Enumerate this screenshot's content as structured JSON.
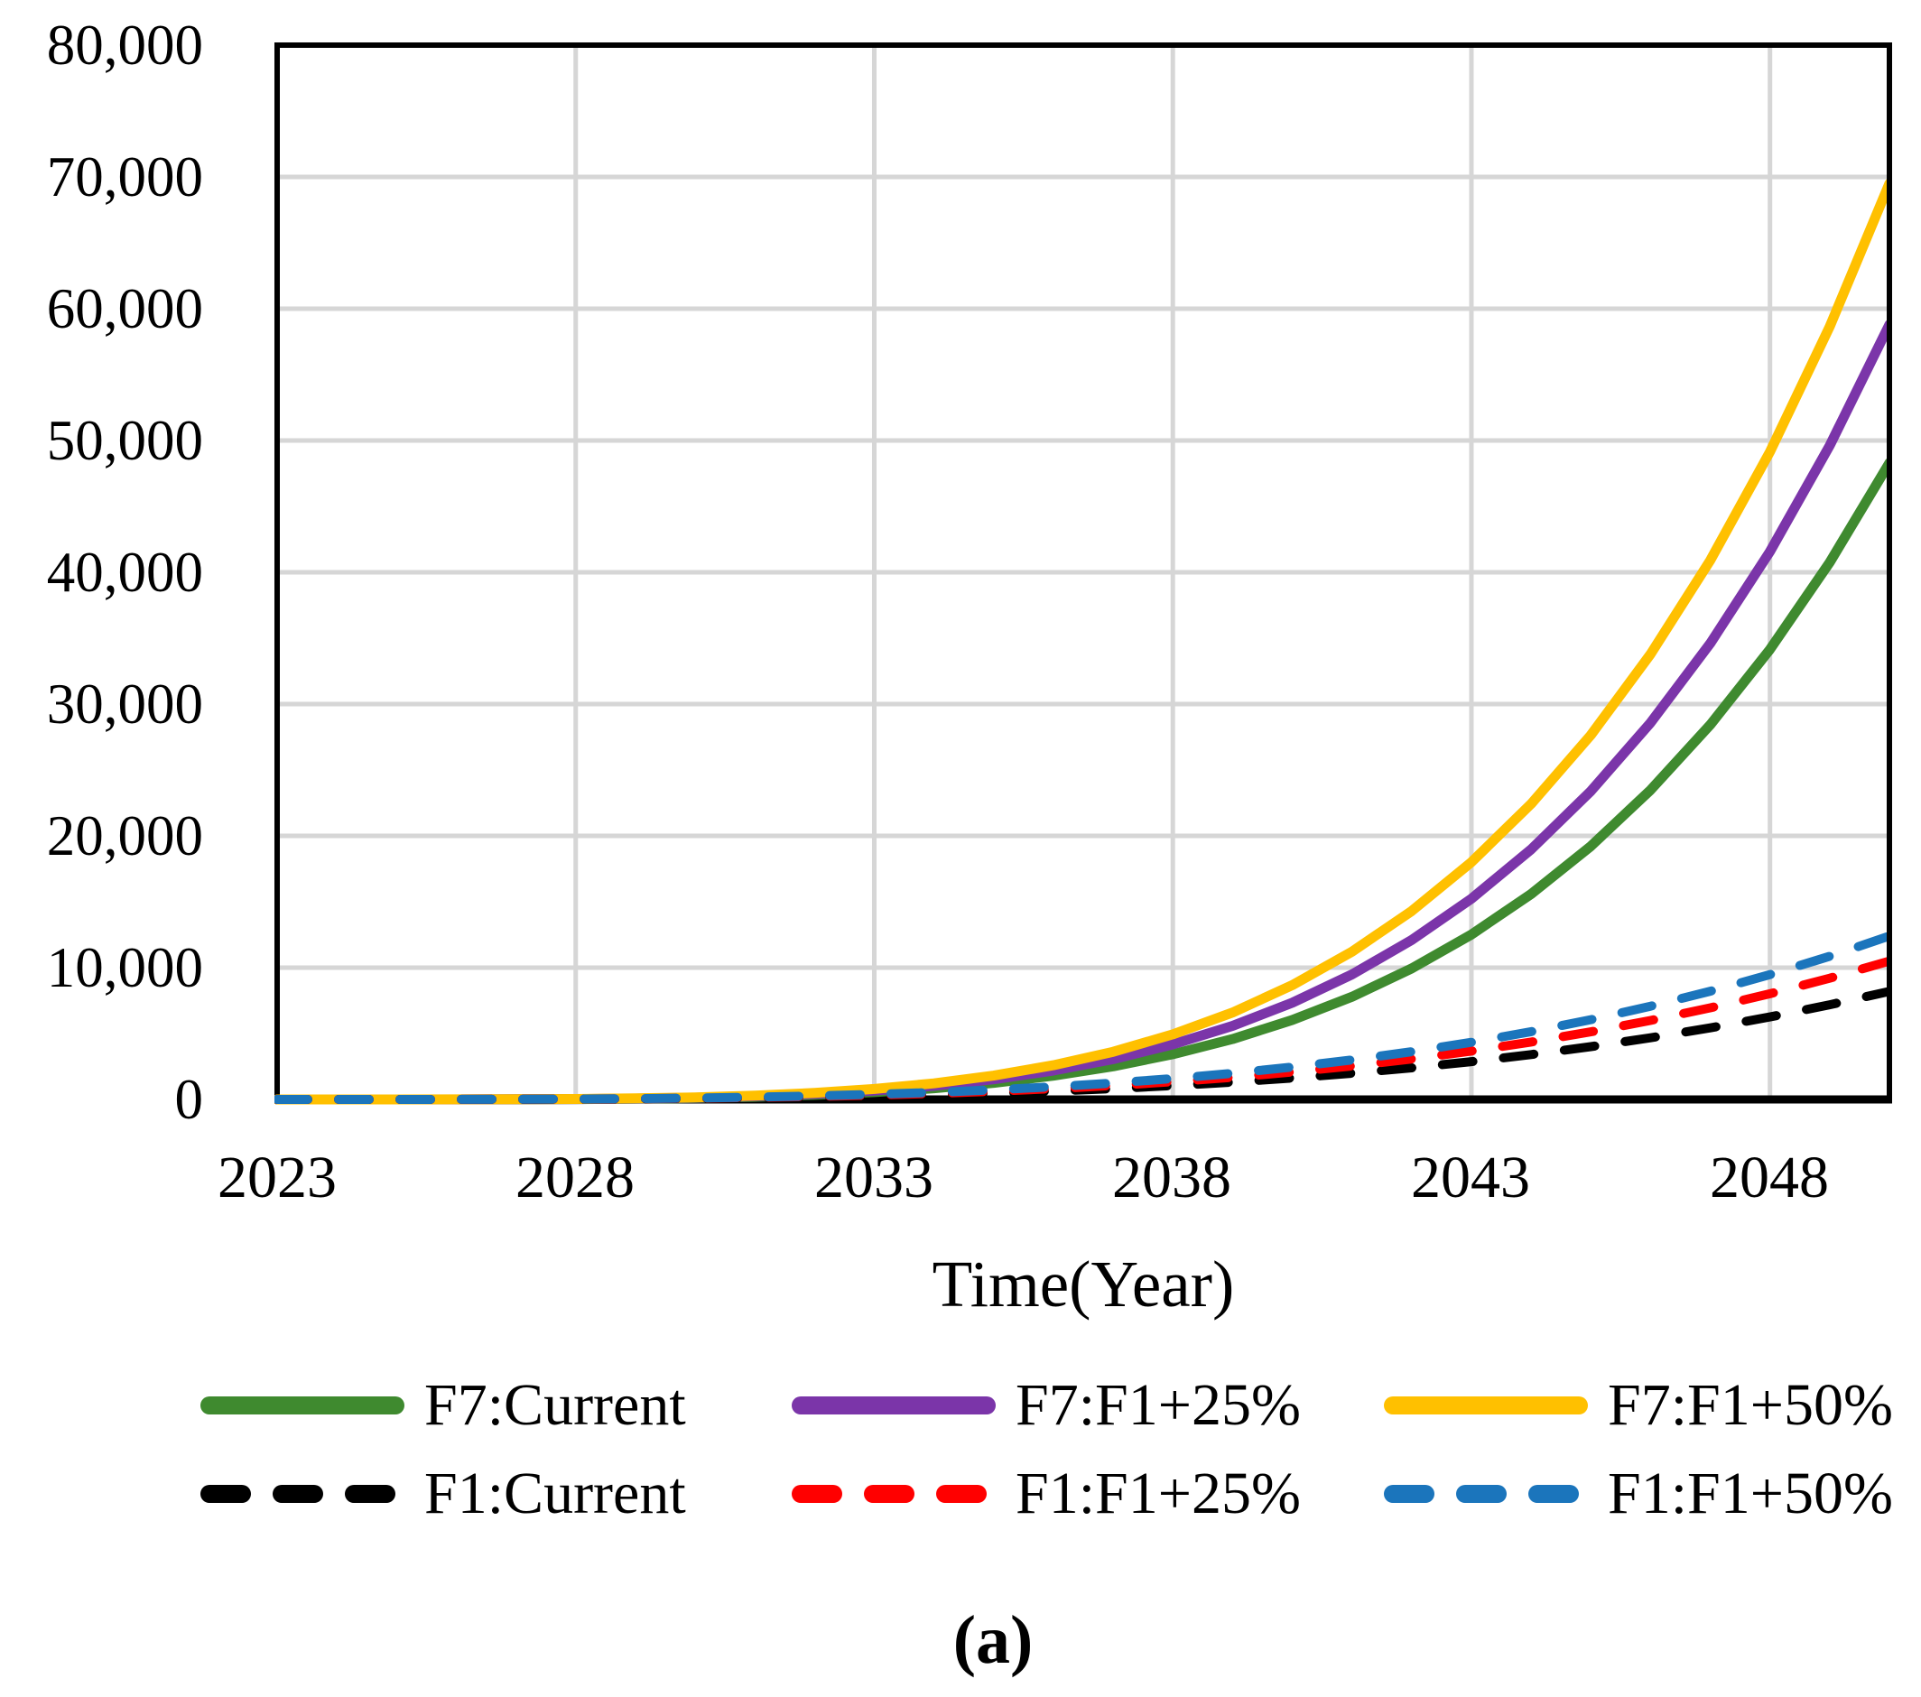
{
  "page": {
    "background": "#FFFFFF"
  },
  "caption": {
    "label": "(a)"
  },
  "chart_data": {
    "type": "line",
    "title": "",
    "xlabel": "Time(Year)",
    "ylabel": "",
    "x_range": [
      2023,
      2050
    ],
    "ylim": [
      0,
      80000
    ],
    "grid": true,
    "legend_position": "bottom",
    "gridline_color": "#D6D6D6",
    "axis_color": "#000000",
    "x_ticks": [
      2023,
      2028,
      2033,
      2038,
      2043,
      2048
    ],
    "x_tick_labels": [
      "2023",
      "2028",
      "2033",
      "2038",
      "2043",
      "2048"
    ],
    "y_ticks": [
      0,
      10000,
      20000,
      30000,
      40000,
      50000,
      60000,
      70000,
      80000
    ],
    "y_tick_labels_desc": [
      "80,000",
      "70,000",
      "60,000",
      "50,000",
      "40,000",
      "30,000",
      "20,000",
      "10,000",
      "0"
    ],
    "years": [
      2023,
      2024,
      2025,
      2026,
      2027,
      2028,
      2029,
      2030,
      2031,
      2032,
      2033,
      2034,
      2035,
      2036,
      2037,
      2038,
      2039,
      2040,
      2041,
      2042,
      2043,
      2044,
      2045,
      2046,
      2047,
      2048,
      2049,
      2050
    ],
    "series": [
      {
        "name": "F7:Current",
        "color": "#3F8A2F",
        "style": "solid",
        "values": [
          0,
          0,
          0,
          2,
          9,
          24,
          56,
          111,
          202,
          344,
          553,
          849,
          1256,
          1802,
          2512,
          3429,
          4584,
          6028,
          7791,
          9935,
          12515,
          15587,
          19219,
          23479,
          28430,
          34153,
          40756,
          48300
        ]
      },
      {
        "name": "F7:F1+25%",
        "color": "#7B35A9",
        "style": "solid",
        "values": [
          0,
          0,
          0,
          3,
          11,
          30,
          68,
          135,
          246,
          419,
          673,
          1034,
          1529,
          2193,
          3058,
          4175,
          5580,
          7338,
          9485,
          12095,
          15235,
          18975,
          23397,
          28583,
          34610,
          41578,
          49616,
          58800
        ]
      },
      {
        "name": "F7:F1+50%",
        "color": "#FFC000",
        "style": "solid",
        "values": [
          0,
          0,
          0,
          4,
          13,
          35,
          80,
          160,
          291,
          496,
          796,
          1222,
          1807,
          2593,
          3614,
          4935,
          6596,
          8674,
          11211,
          14296,
          18008,
          22428,
          27654,
          33785,
          40908,
          49144,
          58645,
          69500
        ]
      },
      {
        "name": "F1:Current",
        "color": "#000000",
        "style": "dashed",
        "values": [
          0,
          0,
          1,
          4,
          10,
          22,
          42,
          73,
          116,
          175,
          253,
          354,
          481,
          635,
          823,
          1048,
          1313,
          1624,
          1984,
          2397,
          2868,
          3403,
          4005,
          4679,
          5430,
          6262,
          7186,
          8200
        ]
      },
      {
        "name": "F1:F1+25%",
        "color": "#FF0000",
        "style": "dashed",
        "values": [
          0,
          0,
          1,
          5,
          13,
          29,
          54,
          93,
          149,
          224,
          324,
          454,
          615,
          813,
          1054,
          1342,
          1681,
          2080,
          2540,
          3069,
          3673,
          4358,
          5128,
          5991,
          6953,
          8019,
          9201,
          10500
        ]
      },
      {
        "name": "F1:F1+50%",
        "color": "#1B75BC",
        "style": "dashed",
        "values": [
          0,
          0,
          1,
          6,
          15,
          34,
          64,
          110,
          176,
          265,
          383,
          536,
          727,
          960,
          1245,
          1585,
          1985,
          2456,
          3000,
          3624,
          4338,
          5146,
          6056,
          7075,
          8211,
          9472,
          10866,
          12400
        ]
      }
    ]
  }
}
